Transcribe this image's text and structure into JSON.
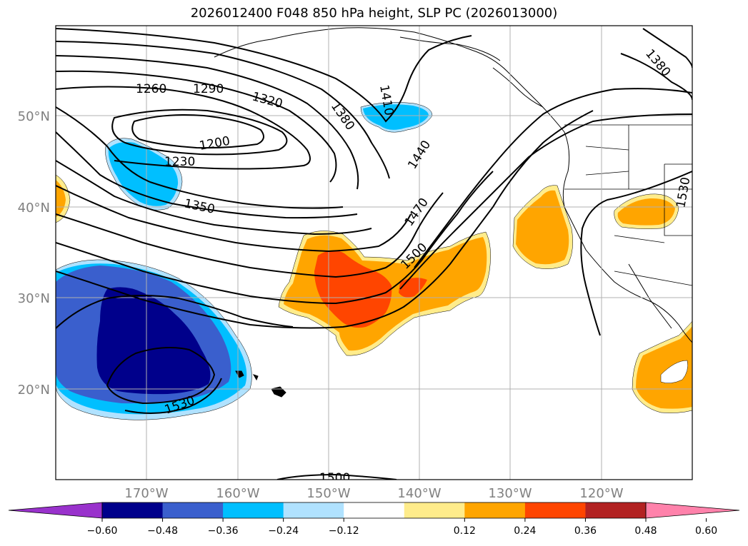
{
  "title": "2026012400 F048 850 hPa height, SLP PC (2026013000)",
  "lat_labels": [
    "50°N",
    "40°N",
    "30°N",
    "20°N"
  ],
  "lon_labels": [
    "170°W",
    "160°W",
    "150°W",
    "140°W",
    "130°W",
    "120°W"
  ],
  "contour_labels": [
    "1260",
    "1290",
    "1320",
    "1380",
    "1410",
    "1200",
    "1230",
    "1440",
    "1350",
    "1470",
    "1500",
    "1530",
    "1500",
    "1380",
    "1530"
  ],
  "colorbar": {
    "tick_labels": [
      "−0.60",
      "−0.48",
      "−0.36",
      "−0.24",
      "−0.12",
      "0.12",
      "0.24",
      "0.36",
      "0.48",
      "0.60"
    ],
    "colors": [
      "#9932cc",
      "#00008b",
      "#3a5fcd",
      "#00bfff",
      "#b0e2ff",
      "#ffffff",
      "#ffec8b",
      "#ffa500",
      "#ff4500",
      "#b22222",
      "#ff82ab"
    ]
  },
  "shading_colors": {
    "dark_blue": "#00008b",
    "mid_blue": "#3a5fcd",
    "light_blue": "#00bfff",
    "pale_blue": "#b0e2ff",
    "yellow": "#ffec8b",
    "orange": "#ffa500",
    "red_orange": "#ff4500"
  }
}
